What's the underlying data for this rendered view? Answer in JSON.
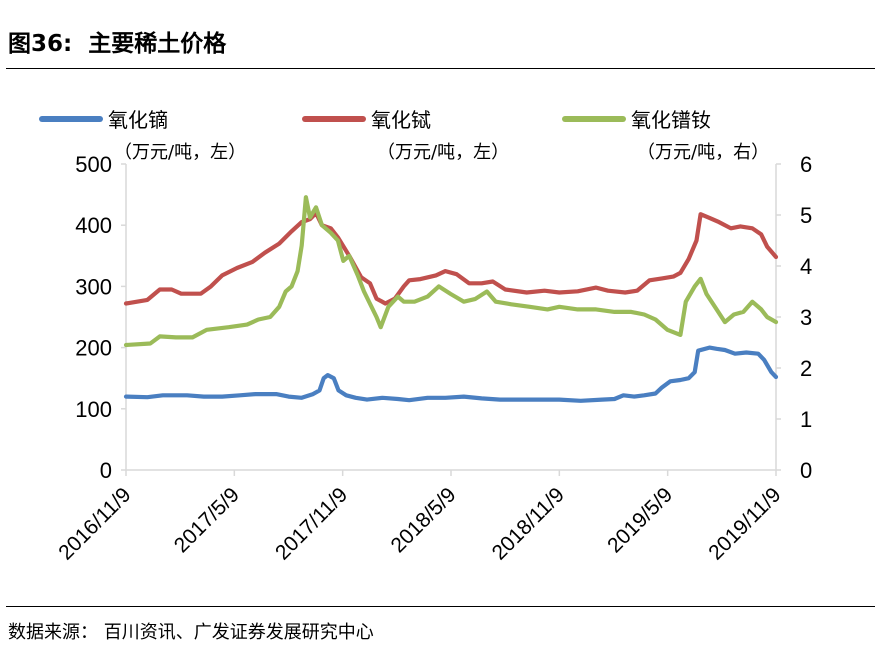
{
  "header": {
    "title": "图36:  主要稀土价格"
  },
  "footer": {
    "source": "数据来源：  百川资讯、广发证券发展研究中心"
  },
  "chart_data": {
    "type": "line",
    "x_tick_labels": [
      "2016/11/9",
      "2017/5/9",
      "2017/11/9",
      "2018/5/9",
      "2018/11/9",
      "2019/5/9",
      "2019/11/9"
    ],
    "x_start": "2016-11-09",
    "x_end": "2019-11-09",
    "y_left": {
      "ticks": [
        "0",
        "100",
        "200",
        "300",
        "400",
        "500"
      ],
      "range": [
        0,
        500
      ]
    },
    "y_right": {
      "ticks": [
        "0",
        "1",
        "2",
        "3",
        "4",
        "5",
        "6"
      ],
      "range": [
        0,
        6
      ]
    },
    "legend": [
      {
        "label": "氧化镝",
        "unit": "（万元/吨，左）",
        "color": "#4a7fc1"
      },
      {
        "label": "氧化铽",
        "unit": "（万元/吨，左）",
        "color": "#c0504d"
      },
      {
        "label": "氧化镨钕",
        "unit": "（万元/吨，右）",
        "color": "#9bbb59"
      }
    ],
    "series": [
      {
        "name": "氧化镝",
        "axis": "left",
        "color": "#4a7fc1",
        "points": [
          [
            "2016-11-09",
            120
          ],
          [
            "2016-12-15",
            119
          ],
          [
            "2017-01-10",
            122
          ],
          [
            "2017-02-20",
            122
          ],
          [
            "2017-03-20",
            120
          ],
          [
            "2017-04-20",
            120
          ],
          [
            "2017-05-20",
            122
          ],
          [
            "2017-06-15",
            124
          ],
          [
            "2017-07-20",
            124
          ],
          [
            "2017-08-10",
            120
          ],
          [
            "2017-09-01",
            118
          ],
          [
            "2017-09-20",
            124
          ],
          [
            "2017-10-01",
            130
          ],
          [
            "2017-10-08",
            150
          ],
          [
            "2017-10-15",
            155
          ],
          [
            "2017-10-25",
            150
          ],
          [
            "2017-11-02",
            130
          ],
          [
            "2017-11-15",
            122
          ],
          [
            "2017-12-01",
            118
          ],
          [
            "2017-12-20",
            115
          ],
          [
            "2018-01-15",
            118
          ],
          [
            "2018-02-10",
            116
          ],
          [
            "2018-03-01",
            114
          ],
          [
            "2018-04-01",
            118
          ],
          [
            "2018-05-01",
            118
          ],
          [
            "2018-06-01",
            120
          ],
          [
            "2018-07-01",
            117
          ],
          [
            "2018-08-01",
            115
          ],
          [
            "2018-09-01",
            115
          ],
          [
            "2018-10-01",
            115
          ],
          [
            "2018-11-09",
            115
          ],
          [
            "2018-12-15",
            113
          ],
          [
            "2019-01-20",
            115
          ],
          [
            "2019-02-10",
            116
          ],
          [
            "2019-02-25",
            122
          ],
          [
            "2019-03-15",
            120
          ],
          [
            "2019-04-01",
            122
          ],
          [
            "2019-04-20",
            125
          ],
          [
            "2019-05-01",
            135
          ],
          [
            "2019-05-15",
            145
          ],
          [
            "2019-06-01",
            147
          ],
          [
            "2019-06-15",
            150
          ],
          [
            "2019-06-25",
            160
          ],
          [
            "2019-07-01",
            195
          ],
          [
            "2019-07-20",
            200
          ],
          [
            "2019-08-01",
            198
          ],
          [
            "2019-08-15",
            196
          ],
          [
            "2019-09-01",
            190
          ],
          [
            "2019-09-20",
            192
          ],
          [
            "2019-10-10",
            190
          ],
          [
            "2019-10-20",
            180
          ],
          [
            "2019-11-01",
            160
          ],
          [
            "2019-11-09",
            152
          ]
        ]
      },
      {
        "name": "氧化铽",
        "axis": "left",
        "color": "#c0504d",
        "points": [
          [
            "2016-11-09",
            272
          ],
          [
            "2016-12-15",
            278
          ],
          [
            "2017-01-05",
            295
          ],
          [
            "2017-01-25",
            295
          ],
          [
            "2017-02-10",
            288
          ],
          [
            "2017-03-15",
            288
          ],
          [
            "2017-04-01",
            300
          ],
          [
            "2017-04-20",
            318
          ],
          [
            "2017-05-15",
            330
          ],
          [
            "2017-06-10",
            340
          ],
          [
            "2017-07-01",
            355
          ],
          [
            "2017-07-25",
            370
          ],
          [
            "2017-08-15",
            390
          ],
          [
            "2017-09-01",
            405
          ],
          [
            "2017-09-15",
            410
          ],
          [
            "2017-09-25",
            420
          ],
          [
            "2017-10-05",
            400
          ],
          [
            "2017-10-20",
            395
          ],
          [
            "2017-11-01",
            380
          ],
          [
            "2017-11-20",
            350
          ],
          [
            "2017-12-10",
            315
          ],
          [
            "2017-12-25",
            305
          ],
          [
            "2018-01-05",
            280
          ],
          [
            "2018-01-20",
            272
          ],
          [
            "2018-02-05",
            280
          ],
          [
            "2018-02-20",
            300
          ],
          [
            "2018-03-01",
            310
          ],
          [
            "2018-03-20",
            312
          ],
          [
            "2018-04-15",
            318
          ],
          [
            "2018-05-01",
            325
          ],
          [
            "2018-05-20",
            320
          ],
          [
            "2018-06-10",
            305
          ],
          [
            "2018-07-01",
            305
          ],
          [
            "2018-07-20",
            308
          ],
          [
            "2018-08-10",
            295
          ],
          [
            "2018-09-15",
            290
          ],
          [
            "2018-10-15",
            293
          ],
          [
            "2018-11-09",
            290
          ],
          [
            "2018-12-10",
            292
          ],
          [
            "2019-01-10",
            298
          ],
          [
            "2019-01-30",
            293
          ],
          [
            "2019-02-28",
            290
          ],
          [
            "2019-03-20",
            293
          ],
          [
            "2019-04-10",
            310
          ],
          [
            "2019-05-01",
            313
          ],
          [
            "2019-05-20",
            316
          ],
          [
            "2019-06-01",
            322
          ],
          [
            "2019-06-15",
            345
          ],
          [
            "2019-06-28",
            375
          ],
          [
            "2019-07-05",
            418
          ],
          [
            "2019-07-20",
            412
          ],
          [
            "2019-08-05",
            405
          ],
          [
            "2019-08-25",
            395
          ],
          [
            "2019-09-10",
            398
          ],
          [
            "2019-09-30",
            395
          ],
          [
            "2019-10-15",
            385
          ],
          [
            "2019-10-25",
            365
          ],
          [
            "2019-11-09",
            348
          ]
        ]
      },
      {
        "name": "氧化镨钕",
        "axis": "right",
        "color": "#9bbb59",
        "points": [
          [
            "2016-11-09",
            2.45
          ],
          [
            "2016-12-20",
            2.48
          ],
          [
            "2017-01-05",
            2.62
          ],
          [
            "2017-02-01",
            2.6
          ],
          [
            "2017-03-01",
            2.6
          ],
          [
            "2017-03-25",
            2.75
          ],
          [
            "2017-05-01",
            2.8
          ],
          [
            "2017-06-01",
            2.85
          ],
          [
            "2017-06-20",
            2.95
          ],
          [
            "2017-07-10",
            3.0
          ],
          [
            "2017-07-25",
            3.2
          ],
          [
            "2017-08-05",
            3.5
          ],
          [
            "2017-08-15",
            3.6
          ],
          [
            "2017-08-25",
            3.9
          ],
          [
            "2017-09-01",
            4.4
          ],
          [
            "2017-09-08",
            5.35
          ],
          [
            "2017-09-15",
            4.95
          ],
          [
            "2017-09-25",
            5.15
          ],
          [
            "2017-10-05",
            4.8
          ],
          [
            "2017-10-20",
            4.65
          ],
          [
            "2017-11-01",
            4.5
          ],
          [
            "2017-11-10",
            4.1
          ],
          [
            "2017-11-20",
            4.2
          ],
          [
            "2017-12-05",
            3.8
          ],
          [
            "2017-12-15",
            3.5
          ],
          [
            "2018-01-05",
            3.0
          ],
          [
            "2018-01-12",
            2.8
          ],
          [
            "2018-01-25",
            3.2
          ],
          [
            "2018-02-10",
            3.4
          ],
          [
            "2018-02-20",
            3.3
          ],
          [
            "2018-03-10",
            3.3
          ],
          [
            "2018-04-01",
            3.4
          ],
          [
            "2018-04-20",
            3.6
          ],
          [
            "2018-05-10",
            3.45
          ],
          [
            "2018-06-01",
            3.3
          ],
          [
            "2018-06-20",
            3.35
          ],
          [
            "2018-07-10",
            3.5
          ],
          [
            "2018-07-25",
            3.3
          ],
          [
            "2018-08-20",
            3.25
          ],
          [
            "2018-09-20",
            3.2
          ],
          [
            "2018-10-20",
            3.15
          ],
          [
            "2018-11-09",
            3.2
          ],
          [
            "2018-12-10",
            3.15
          ],
          [
            "2019-01-10",
            3.15
          ],
          [
            "2019-02-10",
            3.1
          ],
          [
            "2019-03-10",
            3.1
          ],
          [
            "2019-04-01",
            3.05
          ],
          [
            "2019-04-20",
            2.95
          ],
          [
            "2019-05-10",
            2.75
          ],
          [
            "2019-06-01",
            2.65
          ],
          [
            "2019-06-10",
            3.3
          ],
          [
            "2019-06-25",
            3.6
          ],
          [
            "2019-07-05",
            3.75
          ],
          [
            "2019-07-15",
            3.45
          ],
          [
            "2019-08-01",
            3.15
          ],
          [
            "2019-08-15",
            2.9
          ],
          [
            "2019-08-30",
            3.05
          ],
          [
            "2019-09-15",
            3.1
          ],
          [
            "2019-09-30",
            3.3
          ],
          [
            "2019-10-15",
            3.15
          ],
          [
            "2019-10-25",
            3.0
          ],
          [
            "2019-11-09",
            2.9
          ]
        ]
      }
    ]
  }
}
